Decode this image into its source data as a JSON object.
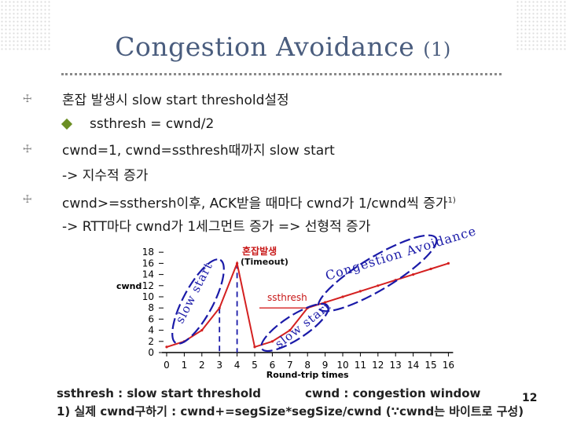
{
  "slide": {
    "title_main": "Congestion Avoidance",
    "title_num": "(1)",
    "page_number": "12"
  },
  "bullets": [
    {
      "text": "혼잡 발생시 slow start threshold설정"
    },
    {
      "text": "cwnd=1, cwnd=ssthresh때까지 slow start"
    },
    {
      "text": "cwnd>=ssthersh이후, ACK받을 때마다 cwnd가 1/cwnd씩 증가",
      "sup": "1)"
    }
  ],
  "sub_bullet": "ssthresh = cwnd/2",
  "continuations": {
    "b2": "-> 지수적 증가",
    "b3": "-> RTT마다 cwnd가 1세그먼트 증가  => 선형적 증가"
  },
  "footnotes": {
    "ssthresh_def": "ssthresh : slow start threshold",
    "cwnd_def": "cwnd : congestion window",
    "note1": "1) 실제 cwnd구하기 : cwnd+=segSize*segSize/cwnd  (∵cwnd는 바이트로 구성)"
  },
  "chart_data": {
    "type": "line",
    "x_ticks": [
      "0",
      "1",
      "2",
      "3",
      "4",
      "5",
      "6",
      "7",
      "8",
      "9",
      "10",
      "11",
      "12",
      "13",
      "14",
      "15",
      "16"
    ],
    "y_ticks": [
      "0",
      "2",
      "4",
      "6",
      "8",
      "10",
      "12",
      "14",
      "16",
      "18"
    ],
    "xlim": [
      0,
      16
    ],
    "ylim": [
      0,
      18
    ],
    "xlabel": "Round-trip times",
    "ylabel": "cwnd",
    "grid": false,
    "series": [
      {
        "name": "cwnd",
        "color": "#d42020",
        "x": [
          0,
          1,
          2,
          3,
          4,
          5,
          6,
          7,
          8,
          9,
          10,
          11,
          12,
          13,
          14,
          15,
          16
        ],
        "y": [
          1,
          2,
          4,
          8,
          16,
          1,
          2,
          4,
          8,
          9,
          10,
          11,
          12,
          13,
          14,
          15,
          16
        ]
      }
    ],
    "ssthresh_line": {
      "y": 8,
      "x_range": [
        5,
        8
      ],
      "color": "#d42020"
    },
    "dashed_guides": {
      "x": [
        3,
        4
      ],
      "color": "#1a1aa8"
    },
    "annotations": {
      "congestion": "혼잡발생",
      "timeout": "(Timeout)",
      "ssthresh": "ssthresh",
      "slow_start_1": "slow start",
      "slow_start_2": "slow start",
      "congestion_avoidance": "Congestion Avoidance"
    },
    "colors": {
      "axis": "#000000",
      "curve": "#d42020",
      "ellipse": "#1a1aa8",
      "label_red": "#c81818"
    }
  }
}
